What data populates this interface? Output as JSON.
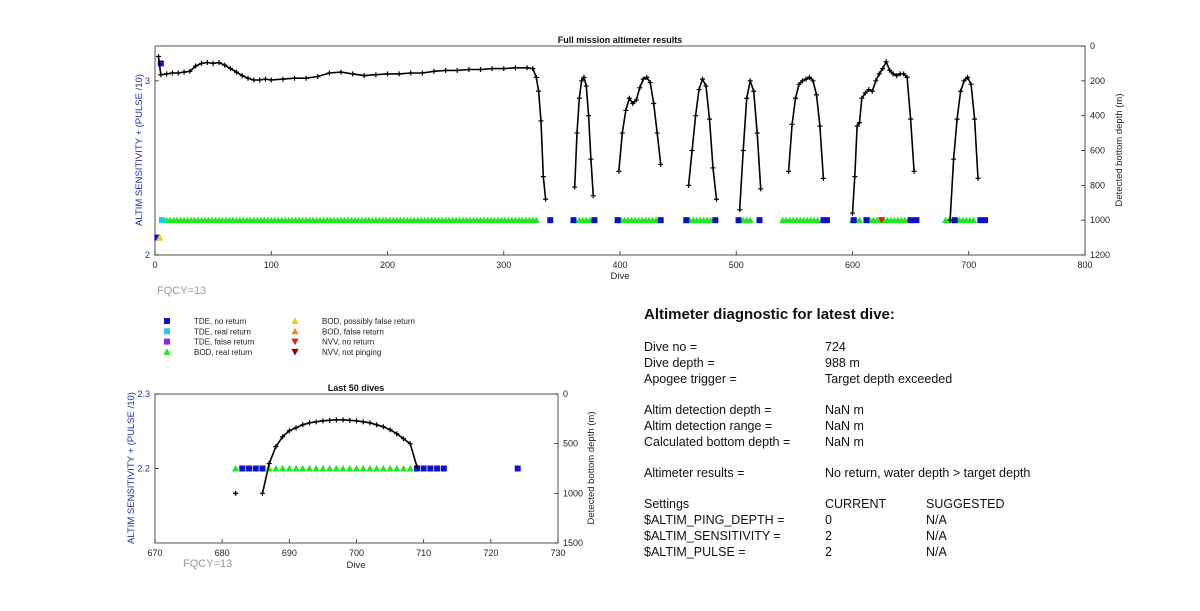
{
  "charts": {
    "top": {
      "title": "Full mission altimeter results",
      "xlabel": "Dive",
      "ylabel_left": "ALTIM SENSITIVITY + (PULSE /10)",
      "ylabel_right": "Detected bottom depth (m)",
      "fqcy": "FQCY=13",
      "xticks": [
        "0",
        "100",
        "200",
        "300",
        "400",
        "500",
        "600",
        "700",
        "800"
      ],
      "yticks_left": [
        "2",
        "3"
      ],
      "yticks_right": [
        "0",
        "200",
        "400",
        "600",
        "800",
        "1000",
        "1200"
      ]
    },
    "bottom": {
      "title": "Last 50 dives",
      "xlabel": "Dive",
      "ylabel_left": "ALTIM SENSITIVITY + (PULSE /10)",
      "ylabel_right": "Detected bottom depth (m)",
      "fqcy": "FQCY=13",
      "xticks": [
        "670",
        "680",
        "690",
        "700",
        "710",
        "720",
        "730"
      ],
      "yticks_left": [
        "2.2",
        "2.3"
      ],
      "yticks_right": [
        "0",
        "500",
        "1000",
        "1500"
      ]
    }
  },
  "legend": [
    {
      "label": "TDE, no return",
      "color": "#1010c8",
      "shape": "square"
    },
    {
      "label": "TDE, real return",
      "color": "#22c8e8",
      "shape": "square"
    },
    {
      "label": "TDE, false return",
      "color": "#8a2be2",
      "shape": "square"
    },
    {
      "label": "BOD, real return",
      "color": "#22e622",
      "shape": "triangle-up"
    },
    {
      "label": "BOD, possibly false return",
      "color": "#f5c518",
      "shape": "triangle-up"
    },
    {
      "label": "BOD, false return",
      "color": "#f08a10",
      "shape": "triangle-up"
    },
    {
      "label": "NVV, no return",
      "color": "#e02010",
      "shape": "triangle-down"
    },
    {
      "label": "NVV, not pinging",
      "color": "#8b0000",
      "shape": "triangle-down"
    }
  ],
  "diagnostic": {
    "heading": "Altimeter diagnostic for latest dive:",
    "rows": [
      {
        "label": "Dive no =",
        "value": "724"
      },
      {
        "label": "Dive depth =",
        "value": "988 m"
      },
      {
        "label": "Apogee trigger =",
        "value": "Target depth exceeded"
      }
    ],
    "rows2": [
      {
        "label": "Altim detection depth =",
        "value": "NaN m"
      },
      {
        "label": "Altim detection range =",
        "value": "NaN m"
      },
      {
        "label": "Calculated bottom depth =",
        "value": "NaN m"
      }
    ],
    "result": {
      "label": "Altimeter results =",
      "value": "No return, water depth > target depth"
    },
    "settings_header": {
      "label": "Settings",
      "current": "CURRENT",
      "suggested": "SUGGESTED"
    },
    "settings": [
      {
        "label": "$ALTIM_PING_DEPTH =",
        "current": "0",
        "suggested": "N/A"
      },
      {
        "label": "$ALTIM_SENSITIVITY =",
        "current": "2",
        "suggested": "N/A"
      },
      {
        "label": "$ALTIM_PULSE =",
        "current": "2",
        "suggested": "N/A"
      }
    ]
  },
  "chart_data": [
    {
      "type": "scatter",
      "title": "Full mission altimeter results",
      "xlabel": "Dive",
      "ylabel": "ALTIM SENSITIVITY + (PULSE /10)",
      "y2label": "Detected bottom depth (m)",
      "xlim": [
        0,
        800
      ],
      "ylim": [
        2,
        3.2
      ],
      "y2lim": [
        1200,
        0
      ],
      "depth_series": [
        {
          "name": "Detected bottom depth",
          "color": "#000000",
          "x": [
            3,
            5,
            10,
            15,
            20,
            25,
            30,
            35,
            40,
            45,
            50,
            55,
            60,
            65,
            70,
            75,
            80,
            85,
            90,
            95,
            100,
            110,
            120,
            130,
            140,
            150,
            160,
            170,
            180,
            190,
            200,
            210,
            220,
            230,
            240,
            250,
            260,
            270,
            280,
            290,
            300,
            310,
            320,
            325,
            328,
            330,
            332,
            334,
            336
          ],
          "y": [
            60,
            165,
            160,
            155,
            155,
            150,
            145,
            115,
            100,
            95,
            100,
            95,
            110,
            130,
            150,
            170,
            185,
            195,
            195,
            190,
            195,
            190,
            185,
            185,
            175,
            155,
            150,
            160,
            170,
            165,
            160,
            160,
            155,
            155,
            145,
            140,
            140,
            135,
            135,
            130,
            130,
            125,
            125,
            130,
            180,
            260,
            430,
            750,
            880
          ]
        },
        {
          "name": "Detected bottom depth",
          "color": "#000000",
          "x": [
            361,
            363,
            365,
            367,
            369,
            371,
            373,
            375,
            377
          ],
          "y": [
            810,
            500,
            300,
            200,
            180,
            230,
            400,
            650,
            860
          ]
        },
        {
          "name": "Detected bottom depth",
          "color": "#000000",
          "x": [
            399,
            402,
            405,
            408,
            411,
            414,
            417,
            420,
            423,
            426,
            429,
            432,
            435
          ],
          "y": [
            720,
            500,
            370,
            300,
            330,
            310,
            240,
            190,
            180,
            210,
            330,
            500,
            680
          ]
        },
        {
          "name": "Detected bottom depth",
          "color": "#000000",
          "x": [
            459,
            462,
            465,
            468,
            471,
            474,
            477,
            480,
            483
          ],
          "y": [
            800,
            600,
            400,
            250,
            190,
            230,
            420,
            700,
            880
          ]
        },
        {
          "name": "Detected bottom depth",
          "color": "#000000",
          "x": [
            503,
            506,
            509,
            512,
            515,
            518,
            521
          ],
          "y": [
            940,
            600,
            300,
            200,
            260,
            500,
            820
          ]
        },
        {
          "name": "Detected bottom depth",
          "color": "#000000",
          "x": [
            545,
            548,
            551,
            554,
            557,
            560,
            563,
            566,
            569,
            572,
            575
          ],
          "y": [
            720,
            450,
            300,
            220,
            200,
            190,
            180,
            200,
            280,
            460,
            760
          ]
        },
        {
          "name": "Detected bottom depth",
          "color": "#000000",
          "x": [
            600,
            602,
            604,
            606,
            608,
            611,
            614,
            617,
            620,
            623,
            626,
            629,
            632,
            635,
            638,
            641,
            644,
            647,
            650,
            653
          ],
          "y": [
            960,
            750,
            460,
            440,
            300,
            270,
            250,
            260,
            200,
            160,
            130,
            90,
            140,
            160,
            170,
            160,
            160,
            180,
            420,
            720
          ]
        },
        {
          "name": "Detected bottom depth",
          "color": "#000000",
          "x": [
            684,
            687,
            690,
            693,
            696,
            699,
            702,
            705,
            708
          ],
          "y": [
            1000,
            650,
            420,
            260,
            200,
            180,
            220,
            420,
            760
          ]
        }
      ],
      "sensitivity_markers": [
        {
          "name": "BOD, real return",
          "color": "#22e622",
          "shape": "triangle-up",
          "y": 2.2,
          "x_ranges": [
            [
              10,
              330
            ],
            [
              365,
              375
            ],
            [
              398,
              432
            ],
            [
              457,
              480
            ],
            [
              503,
              513
            ],
            [
              540,
              570
            ],
            [
              600,
              608
            ],
            [
              615,
              648
            ],
            [
              680,
              705
            ]
          ]
        },
        {
          "name": "TDE, no return",
          "color": "#1010c8",
          "shape": "square",
          "y": 2.2,
          "x": [
            340,
            360,
            378,
            398,
            435,
            457,
            482,
            502,
            520,
            575,
            578,
            601,
            612,
            650,
            655,
            688,
            710,
            714
          ]
        },
        {
          "name": "TDE, real return",
          "color": "#22c8e8",
          "shape": "square",
          "y": 2.2,
          "x": [
            6
          ]
        },
        {
          "name": "NVV, no return",
          "color": "#e02010",
          "shape": "triangle-down",
          "y": 2.2,
          "x": [
            625
          ]
        },
        {
          "name": "TDE, no return",
          "color": "#1010c8",
          "shape": "square",
          "y": 3.1,
          "x": [
            5
          ]
        },
        {
          "name": "TDE, no return",
          "color": "#1010c8",
          "shape": "square",
          "y": 2.1,
          "x": [
            2
          ]
        },
        {
          "name": "BOD, possibly false return",
          "color": "#f5c518",
          "shape": "triangle-up",
          "y": 2.1,
          "x": [
            4
          ]
        }
      ]
    },
    {
      "type": "scatter",
      "title": "Last 50 dives",
      "xlabel": "Dive",
      "ylabel": "ALTIM SENSITIVITY + (PULSE /10)",
      "y2label": "Detected bottom depth (m)",
      "xlim": [
        670,
        730
      ],
      "ylim": [
        2.1,
        2.3
      ],
      "y2lim": [
        1500,
        0
      ],
      "depth_series": [
        {
          "name": "Detected bottom depth",
          "color": "#000000",
          "x": [
            686,
            687,
            688,
            689,
            690,
            691,
            692,
            693,
            694,
            695,
            696,
            697,
            698,
            699,
            700,
            701,
            702,
            703,
            704,
            705,
            706,
            707,
            708,
            709
          ],
          "y": [
            1000,
            700,
            530,
            430,
            370,
            340,
            310,
            290,
            280,
            270,
            265,
            260,
            260,
            265,
            270,
            280,
            290,
            310,
            330,
            360,
            400,
            450,
            500,
            730
          ]
        }
      ],
      "isolated_points": [
        {
          "x": 682,
          "y": 1000
        }
      ],
      "sensitivity_markers": [
        {
          "name": "BOD, real return",
          "color": "#22e622",
          "shape": "triangle-up",
          "y": 2.2,
          "x": [
            682,
            687,
            688,
            689,
            690,
            691,
            692,
            693,
            694,
            695,
            696,
            697,
            698,
            699,
            700,
            701,
            702,
            703,
            704,
            705,
            706,
            707,
            708
          ]
        },
        {
          "name": "TDE, no return",
          "color": "#1010c8",
          "shape": "square",
          "y": 2.2,
          "x": [
            683,
            684,
            685,
            686,
            709,
            710,
            711,
            712,
            713,
            724
          ]
        }
      ]
    }
  ]
}
